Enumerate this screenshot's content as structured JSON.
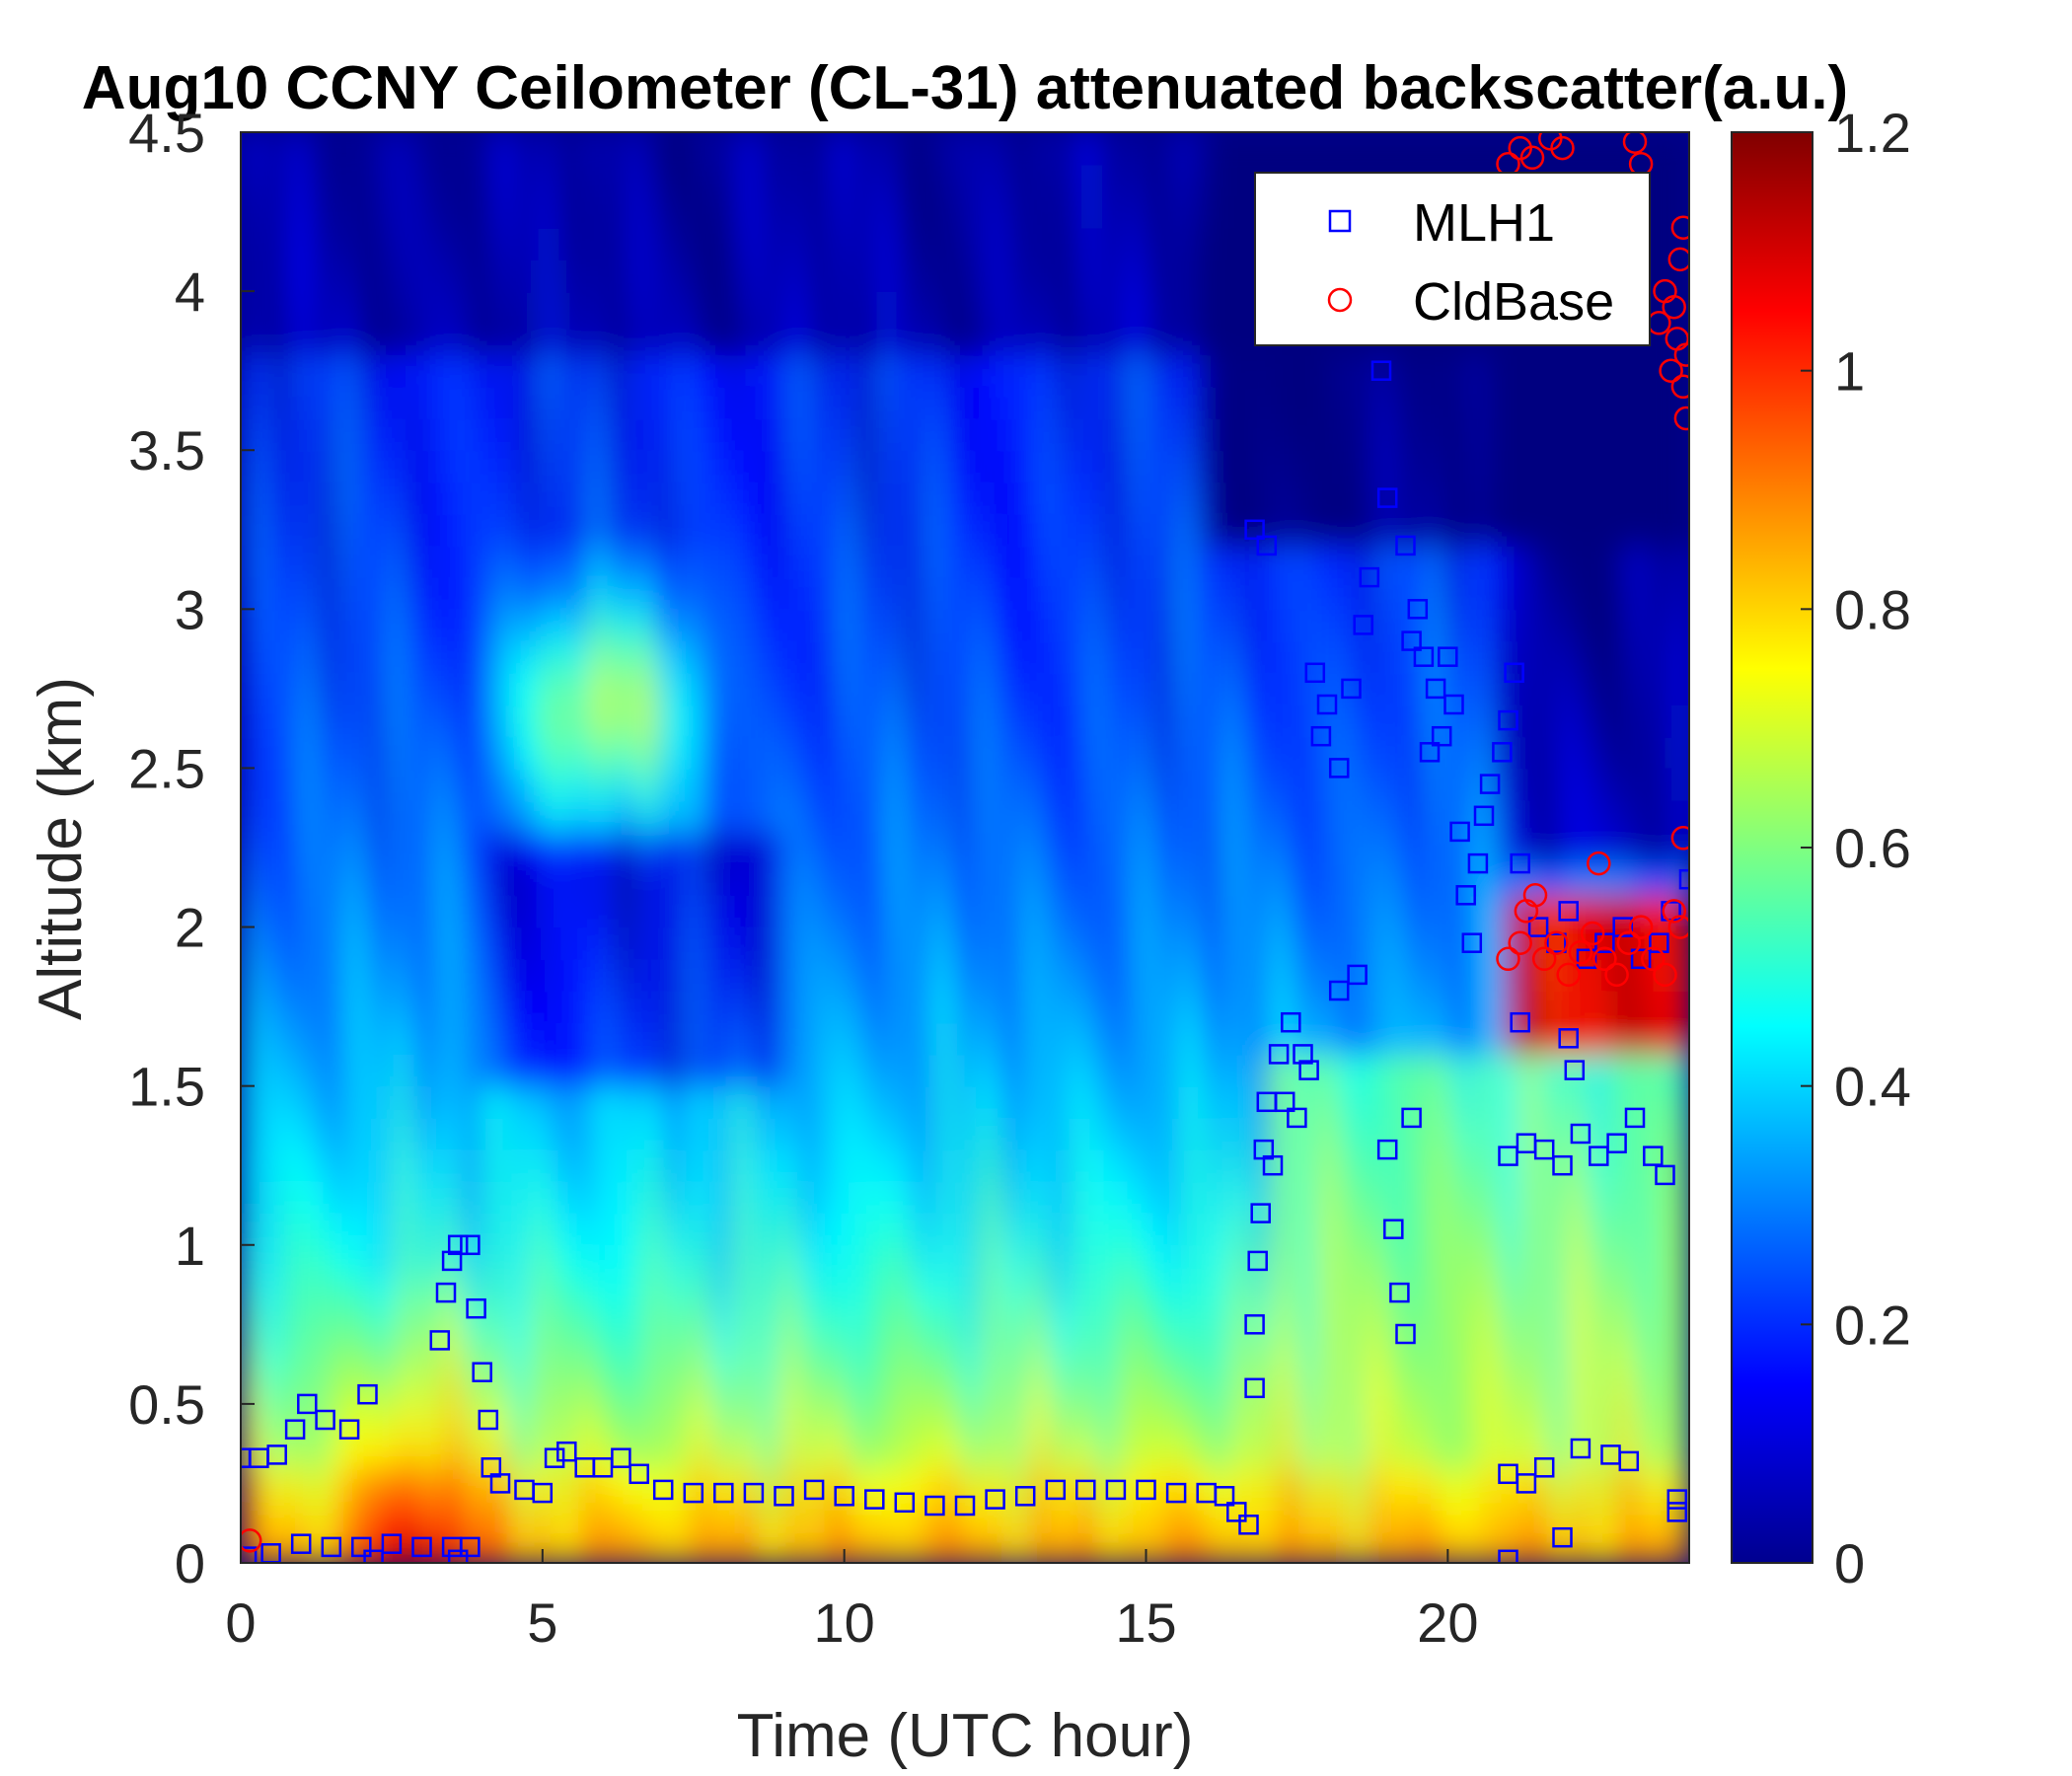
{
  "chart_data": {
    "type": "heatmap",
    "title": "Aug10 CCNY Ceilometer (CL-31) attenuated backscatter(a.u.)",
    "xlabel": "Time (UTC hour)",
    "ylabel": "Altitude (km)",
    "xlim": [
      0,
      24
    ],
    "ylim": [
      0,
      4.5
    ],
    "xticks": [
      "0",
      "5",
      "10",
      "15",
      "20"
    ],
    "yticks": [
      "0",
      "0.5",
      "1",
      "1.5",
      "2",
      "2.5",
      "3",
      "3.5",
      "4",
      "4.5"
    ],
    "colorbar": {
      "colormap": "jet",
      "clim": [
        0,
        1.2
      ],
      "ticks": [
        "0",
        "0.2",
        "0.4",
        "0.6",
        "0.8",
        "1",
        "1.2"
      ]
    },
    "legend": {
      "position": "top-right",
      "entries": [
        "MLH1",
        "CldBase"
      ]
    },
    "series": [
      {
        "name": "MLH1",
        "marker": "square",
        "color": "#0000ff",
        "points": [
          [
            0.0,
            0.33
          ],
          [
            0.3,
            0.33
          ],
          [
            0.6,
            0.34
          ],
          [
            0.9,
            0.42
          ],
          [
            1.1,
            0.5
          ],
          [
            1.4,
            0.45
          ],
          [
            1.8,
            0.42
          ],
          [
            2.1,
            0.53
          ],
          [
            3.3,
            0.7
          ],
          [
            3.4,
            0.85
          ],
          [
            3.5,
            0.95
          ],
          [
            3.6,
            1.0
          ],
          [
            3.8,
            1.0
          ],
          [
            3.9,
            0.8
          ],
          [
            4.0,
            0.6
          ],
          [
            4.1,
            0.45
          ],
          [
            4.15,
            0.3
          ],
          [
            4.3,
            0.25
          ],
          [
            4.7,
            0.23
          ],
          [
            5.0,
            0.22
          ],
          [
            5.2,
            0.33
          ],
          [
            5.4,
            0.35
          ],
          [
            5.7,
            0.3
          ],
          [
            6.0,
            0.3
          ],
          [
            6.3,
            0.33
          ],
          [
            6.6,
            0.28
          ],
          [
            7.0,
            0.23
          ],
          [
            7.5,
            0.22
          ],
          [
            8.0,
            0.22
          ],
          [
            8.5,
            0.22
          ],
          [
            9.0,
            0.21
          ],
          [
            9.5,
            0.23
          ],
          [
            10.0,
            0.21
          ],
          [
            10.5,
            0.2
          ],
          [
            11.0,
            0.19
          ],
          [
            11.5,
            0.18
          ],
          [
            12.0,
            0.18
          ],
          [
            12.5,
            0.2
          ],
          [
            13.0,
            0.21
          ],
          [
            13.5,
            0.23
          ],
          [
            14.0,
            0.23
          ],
          [
            14.5,
            0.23
          ],
          [
            15.0,
            0.23
          ],
          [
            15.5,
            0.22
          ],
          [
            16.0,
            0.22
          ],
          [
            16.3,
            0.21
          ],
          [
            16.5,
            0.16
          ],
          [
            16.7,
            0.12
          ],
          [
            0.1,
            0.02
          ],
          [
            0.5,
            0.03
          ],
          [
            1.0,
            0.06
          ],
          [
            1.5,
            0.05
          ],
          [
            2.0,
            0.05
          ],
          [
            2.5,
            0.06
          ],
          [
            3.0,
            0.05
          ],
          [
            3.5,
            0.05
          ],
          [
            3.8,
            0.05
          ],
          [
            2.2,
            0.01
          ],
          [
            3.6,
            0.01
          ],
          [
            16.8,
            0.55
          ],
          [
            16.8,
            0.75
          ],
          [
            16.85,
            0.95
          ],
          [
            16.9,
            1.1
          ],
          [
            16.95,
            1.3
          ],
          [
            17.0,
            1.45
          ],
          [
            17.1,
            1.25
          ],
          [
            17.2,
            1.6
          ],
          [
            17.3,
            1.45
          ],
          [
            17.5,
            1.4
          ],
          [
            17.6,
            1.6
          ],
          [
            17.7,
            1.55
          ],
          [
            16.8,
            3.25
          ],
          [
            17.0,
            3.2
          ],
          [
            17.8,
            2.8
          ],
          [
            17.9,
            2.6
          ],
          [
            18.0,
            2.7
          ],
          [
            18.2,
            2.5
          ],
          [
            18.4,
            2.75
          ],
          [
            18.6,
            2.95
          ],
          [
            18.7,
            3.1
          ],
          [
            18.9,
            3.75
          ],
          [
            19.0,
            3.35
          ],
          [
            19.0,
            1.3
          ],
          [
            19.1,
            1.05
          ],
          [
            19.2,
            0.85
          ],
          [
            19.3,
            0.72
          ],
          [
            19.4,
            1.4
          ],
          [
            19.4,
            2.9
          ],
          [
            19.3,
            3.2
          ],
          [
            19.5,
            3.0
          ],
          [
            19.6,
            2.85
          ],
          [
            19.8,
            2.75
          ],
          [
            20.0,
            2.85
          ],
          [
            20.1,
            2.7
          ],
          [
            20.2,
            2.3
          ],
          [
            20.3,
            2.1
          ],
          [
            20.4,
            1.95
          ],
          [
            20.5,
            2.2
          ],
          [
            20.7,
            2.45
          ],
          [
            20.9,
            2.55
          ],
          [
            21.0,
            2.65
          ],
          [
            21.1,
            2.8
          ],
          [
            21.2,
            2.2
          ],
          [
            21.0,
            1.28
          ],
          [
            21.3,
            1.32
          ],
          [
            21.6,
            1.3
          ],
          [
            21.9,
            1.25
          ],
          [
            22.2,
            1.35
          ],
          [
            22.5,
            1.28
          ],
          [
            22.8,
            1.32
          ],
          [
            23.1,
            1.4
          ],
          [
            23.4,
            1.28
          ],
          [
            23.6,
            1.22
          ],
          [
            21.0,
            0.28
          ],
          [
            21.3,
            0.25
          ],
          [
            21.6,
            0.3
          ],
          [
            21.9,
            0.08
          ],
          [
            22.2,
            0.36
          ],
          [
            22.7,
            0.34
          ],
          [
            23.0,
            0.32
          ],
          [
            23.8,
            0.2
          ],
          [
            23.8,
            0.16
          ],
          [
            21.0,
            0.01
          ],
          [
            21.2,
            1.7
          ],
          [
            21.5,
            2.0
          ],
          [
            21.8,
            1.95
          ],
          [
            22.0,
            2.05
          ],
          [
            22.3,
            1.9
          ],
          [
            22.6,
            1.95
          ],
          [
            22.9,
            2.0
          ],
          [
            23.2,
            1.9
          ],
          [
            23.5,
            1.95
          ],
          [
            23.7,
            2.05
          ],
          [
            24.0,
            2.15
          ],
          [
            22.0,
            1.65
          ],
          [
            22.1,
            1.55
          ],
          [
            17.4,
            1.7
          ],
          [
            18.5,
            1.85
          ],
          [
            18.2,
            1.8
          ],
          [
            19.9,
            2.6
          ],
          [
            20.6,
            2.35
          ],
          [
            19.7,
            2.55
          ]
        ]
      },
      {
        "name": "CldBase",
        "marker": "circle",
        "color": "#ff0000",
        "points": [
          [
            0.15,
            0.07
          ],
          [
            21.0,
            1.9
          ],
          [
            21.2,
            1.95
          ],
          [
            21.3,
            2.05
          ],
          [
            21.45,
            2.1
          ],
          [
            21.6,
            1.9
          ],
          [
            21.8,
            1.95
          ],
          [
            22.0,
            1.85
          ],
          [
            22.2,
            1.92
          ],
          [
            22.4,
            1.98
          ],
          [
            22.6,
            1.9
          ],
          [
            22.8,
            1.85
          ],
          [
            23.0,
            1.95
          ],
          [
            23.2,
            2.0
          ],
          [
            23.4,
            1.9
          ],
          [
            23.6,
            1.85
          ],
          [
            23.75,
            2.05
          ],
          [
            23.85,
            2.0
          ],
          [
            22.5,
            2.2
          ],
          [
            23.9,
            2.28
          ],
          [
            21.0,
            4.4
          ],
          [
            21.2,
            4.45
          ],
          [
            21.4,
            4.42
          ],
          [
            21.7,
            4.48
          ],
          [
            21.9,
            4.45
          ],
          [
            23.1,
            4.47
          ],
          [
            23.2,
            4.4
          ],
          [
            23.5,
            3.9
          ],
          [
            23.6,
            4.0
          ],
          [
            23.7,
            3.75
          ],
          [
            23.8,
            3.85
          ],
          [
            23.9,
            3.7
          ],
          [
            23.95,
            3.6
          ],
          [
            23.9,
            4.2
          ],
          [
            23.85,
            4.1
          ],
          [
            23.75,
            3.95
          ],
          [
            23.95,
            3.8
          ]
        ]
      }
    ]
  }
}
